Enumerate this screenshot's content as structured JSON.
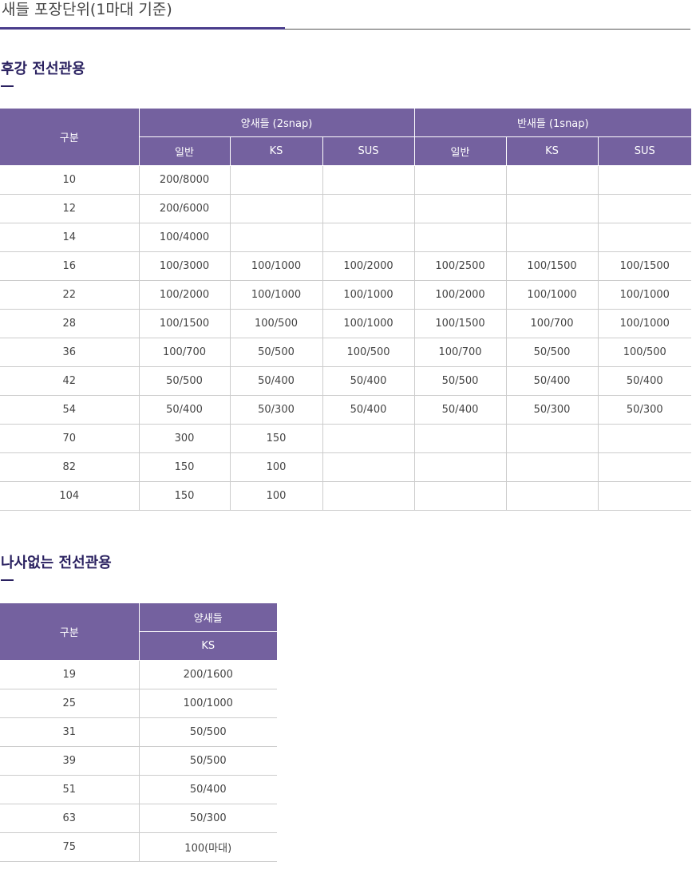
{
  "page": {
    "title": "새들 포장단위(1마대 기준)"
  },
  "section1": {
    "title": "후강 전선관용",
    "header": {
      "category": "구분",
      "group1": "양새들 (2snap)",
      "group2": "반새들 (1snap)",
      "sub": [
        "일반",
        "KS",
        "SUS",
        "일반",
        "KS",
        "SUS"
      ]
    },
    "rows": [
      [
        "10",
        "200/8000",
        "",
        "",
        "",
        "",
        ""
      ],
      [
        "12",
        "200/6000",
        "",
        "",
        "",
        "",
        ""
      ],
      [
        "14",
        "100/4000",
        "",
        "",
        "",
        "",
        ""
      ],
      [
        "16",
        "100/3000",
        "100/1000",
        "100/2000",
        "100/2500",
        "100/1500",
        "100/1500"
      ],
      [
        "22",
        "100/2000",
        "100/1000",
        "100/1000",
        "100/2000",
        "100/1000",
        "100/1000"
      ],
      [
        "28",
        "100/1500",
        "100/500",
        "100/1000",
        "100/1500",
        "100/700",
        "100/1000"
      ],
      [
        "36",
        "100/700",
        "50/500",
        "100/500",
        "100/700",
        "50/500",
        "100/500"
      ],
      [
        "42",
        "50/500",
        "50/400",
        "50/400",
        "50/500",
        "50/400",
        "50/400"
      ],
      [
        "54",
        "50/400",
        "50/300",
        "50/400",
        "50/400",
        "50/300",
        "50/300"
      ],
      [
        "70",
        "300",
        "150",
        "",
        "",
        "",
        ""
      ],
      [
        "82",
        "150",
        "100",
        "",
        "",
        "",
        ""
      ],
      [
        "104",
        "150",
        "100",
        "",
        "",
        "",
        ""
      ]
    ]
  },
  "section2": {
    "title": "나사없는 전선관용",
    "header": {
      "category": "구분",
      "group1": "양새들",
      "sub": [
        "KS"
      ]
    },
    "rows": [
      [
        "19",
        "200/1600"
      ],
      [
        "25",
        "100/1000"
      ],
      [
        "31",
        "50/500"
      ],
      [
        "39",
        "50/500"
      ],
      [
        "51",
        "50/400"
      ],
      [
        "63",
        "50/300"
      ],
      [
        "75",
        "100(마대)"
      ]
    ]
  },
  "colors": {
    "accent": "#4a3d8c",
    "header_bg": "#74619f",
    "section_title": "#2a2160"
  }
}
